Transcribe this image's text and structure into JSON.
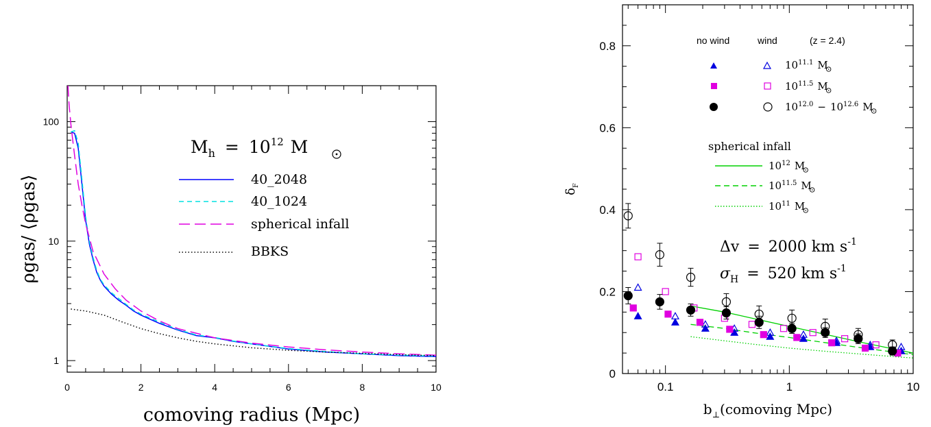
{
  "chart_data": [
    {
      "type": "line",
      "xlabel": "comoving radius (Mpc)",
      "ylabel": "ρgas/ ⟨ρgas⟩",
      "xlim": [
        0,
        10
      ],
      "ylim": [
        0.8,
        200
      ],
      "yscale": "log",
      "xticks": [
        0,
        2,
        4,
        6,
        8,
        10
      ],
      "yticks": [
        1,
        10,
        100
      ],
      "annotation": "Mh = 10^12 M⊙",
      "annotation_parts": {
        "m": "M",
        "sub": "h",
        "eq": "=",
        "base": "10",
        "exp": "12",
        "unit": "M"
      },
      "legend_position": "center-right",
      "series": [
        {
          "name": "40_2048",
          "color": "#0000ff",
          "style": "solid",
          "x": [
            0.1,
            0.2,
            0.3,
            0.4,
            0.5,
            0.6,
            0.7,
            0.8,
            0.9,
            1.0,
            1.2,
            1.4,
            1.6,
            1.8,
            2.0,
            2.5,
            3.0,
            3.5,
            4.0,
            4.5,
            5.0,
            6.0,
            7.0,
            8.0,
            9.0,
            10.0
          ],
          "y": [
            82,
            80,
            60,
            30,
            15,
            9.5,
            7,
            5.5,
            4.7,
            4.2,
            3.6,
            3.2,
            2.9,
            2.6,
            2.4,
            2.05,
            1.8,
            1.62,
            1.55,
            1.45,
            1.38,
            1.25,
            1.18,
            1.14,
            1.1,
            1.08
          ]
        },
        {
          "name": "40_1024",
          "color": "#00e0e0",
          "style": "dashed",
          "x": [
            0.1,
            0.2,
            0.3,
            0.4,
            0.5,
            0.6,
            0.7,
            0.8,
            0.9,
            1.0,
            1.2,
            1.4,
            1.6,
            1.8,
            2.0,
            2.5,
            3.0,
            3.5,
            4.0,
            4.5,
            5.0,
            6.0,
            7.0,
            8.0,
            9.0,
            10.0
          ],
          "y": [
            82,
            84,
            66,
            33,
            16,
            10,
            7.3,
            5.7,
            4.8,
            4.3,
            3.7,
            3.3,
            2.95,
            2.65,
            2.45,
            2.1,
            1.82,
            1.64,
            1.56,
            1.46,
            1.38,
            1.26,
            1.19,
            1.14,
            1.11,
            1.09
          ]
        },
        {
          "name": "spherical infall",
          "color": "#e000e0",
          "style": "longdash",
          "x": [
            0.02,
            0.05,
            0.1,
            0.15,
            0.2,
            0.3,
            0.4,
            0.5,
            0.7,
            1.0,
            1.3,
            1.6,
            2.0,
            2.5,
            3.0,
            4.0,
            5.0,
            6.0,
            7.0,
            8.0,
            9.0,
            10.0
          ],
          "y": [
            200,
            140,
            95,
            70,
            52,
            30,
            20,
            14,
            8.2,
            5.3,
            4.0,
            3.2,
            2.6,
            2.15,
            1.85,
            1.55,
            1.4,
            1.3,
            1.23,
            1.18,
            1.14,
            1.11
          ]
        },
        {
          "name": "BBKS",
          "color": "#000000",
          "style": "dotted",
          "x": [
            0.1,
            0.5,
            1.0,
            1.5,
            2.0,
            2.5,
            3.0,
            3.5,
            4.0,
            5.0,
            6.0,
            7.0,
            8.0,
            9.0,
            10.0
          ],
          "y": [
            2.7,
            2.6,
            2.4,
            2.1,
            1.85,
            1.68,
            1.55,
            1.45,
            1.38,
            1.28,
            1.22,
            1.18,
            1.15,
            1.12,
            1.1
          ]
        }
      ]
    },
    {
      "type": "scatter",
      "xlabel": "b⊥(comoving Mpc)",
      "xlabel_parts": {
        "b": "b",
        "sub": "⊥",
        "rest": "(comoving Mpc)"
      },
      "ylabel": "δF",
      "ylabel_parts": {
        "sym": "δ",
        "sub": "F"
      },
      "xlim": [
        0.045,
        10
      ],
      "xscale": "log",
      "ylim": [
        0,
        0.9
      ],
      "xticks": [
        0.1,
        1,
        10
      ],
      "xtick_labels": [
        "0.1",
        "1",
        "10"
      ],
      "yticks": [
        0,
        0.2,
        0.4,
        0.6,
        0.8
      ],
      "ytick_labels": [
        "0",
        "0.2",
        "0.4",
        "0.6",
        "0.8"
      ],
      "legend_header": {
        "no_wind": "no wind",
        "wind": "wind",
        "redshift": "(z = 2.4)"
      },
      "legend_entries": [
        {
          "label": "10^11.1 M⊙",
          "base": "10",
          "exp": "11.1",
          "unit": "M",
          "color": "#0000e0",
          "filled": "triangle",
          "open": "triangle"
        },
        {
          "label": "10^11.5 M⊙",
          "base": "10",
          "exp": "11.5",
          "unit": "M",
          "color": "#e000e0",
          "filled": "square",
          "open": "square"
        },
        {
          "label": "10^12.0 − 10^12.6 M⊙",
          "base": "10",
          "exp": "12.0",
          "dash": "−",
          "base2": "10",
          "exp2": "12.6",
          "unit": "M",
          "color": "#000000",
          "filled": "circle",
          "open": "circle"
        }
      ],
      "infall_title": "spherical infall",
      "infall_lines": [
        {
          "label": "10^12 M⊙",
          "base": "10",
          "exp": "12",
          "unit": "M",
          "style": "solid",
          "color": "#00d000",
          "x": [
            0.16,
            0.3,
            0.5,
            1.0,
            2.0,
            4.0,
            8.0,
            10.0
          ],
          "y": [
            0.165,
            0.15,
            0.135,
            0.115,
            0.095,
            0.075,
            0.056,
            0.05
          ]
        },
        {
          "label": "10^11.5 M⊙",
          "base": "10",
          "exp": "11.5",
          "unit": "M",
          "style": "dashed",
          "color": "#00d000",
          "x": [
            0.16,
            0.3,
            0.5,
            1.0,
            2.0,
            4.0,
            8.0,
            10.0
          ],
          "y": [
            0.12,
            0.11,
            0.1,
            0.088,
            0.075,
            0.062,
            0.05,
            0.046
          ]
        },
        {
          "label": "10^11 M⊙",
          "base": "10",
          "exp": "11",
          "unit": "M",
          "style": "dotted",
          "color": "#00d000",
          "x": [
            0.16,
            0.3,
            0.5,
            1.0,
            2.0,
            4.0,
            8.0,
            10.0
          ],
          "y": [
            0.09,
            0.08,
            0.072,
            0.062,
            0.054,
            0.047,
            0.04,
            0.038
          ]
        }
      ],
      "annotations": [
        {
          "text": "Δv = 2000 km s^-1",
          "sym": "Δv",
          "eq": "=",
          "val": "2000 km s",
          "exp": "-1"
        },
        {
          "text": "σH = 520 km s^-1",
          "sym": "σ",
          "sub": "H",
          "eq": "=",
          "val": "520 km s",
          "exp": "-1"
        }
      ],
      "points": {
        "no_wind_triangle": {
          "x": [
            0.06,
            0.12,
            0.21,
            0.36,
            0.7,
            1.3,
            2.4,
            4.5,
            8.0
          ],
          "y": [
            0.14,
            0.125,
            0.11,
            0.1,
            0.09,
            0.085,
            0.075,
            0.065,
            0.055
          ]
        },
        "wind_triangle": {
          "x": [
            0.06,
            0.12,
            0.21,
            0.36,
            0.7,
            1.3,
            2.4,
            4.5,
            8.0
          ],
          "y": [
            0.21,
            0.14,
            0.12,
            0.11,
            0.1,
            0.095,
            0.08,
            0.07,
            0.065
          ]
        },
        "no_wind_square": {
          "x": [
            0.055,
            0.105,
            0.19,
            0.33,
            0.62,
            1.15,
            2.2,
            4.1,
            7.5
          ],
          "y": [
            0.16,
            0.145,
            0.125,
            0.108,
            0.095,
            0.088,
            0.075,
            0.062,
            0.05
          ]
        },
        "wind_square": {
          "x": [
            0.06,
            0.1,
            0.17,
            0.3,
            0.5,
            0.9,
            1.55,
            2.8,
            5.0
          ],
          "y": [
            0.285,
            0.2,
            0.16,
            0.135,
            0.12,
            0.11,
            0.1,
            0.085,
            0.07
          ]
        },
        "no_wind_circle": {
          "x": [
            0.05,
            0.09,
            0.16,
            0.31,
            0.57,
            1.05,
            1.95,
            3.6,
            6.8
          ],
          "y": [
            0.19,
            0.175,
            0.155,
            0.148,
            0.125,
            0.11,
            0.1,
            0.085,
            0.055
          ]
        },
        "no_wind_circle_err": [
          0.02,
          0.018,
          0.015,
          0.015,
          0.015,
          0.012,
          0.012,
          0.012,
          0.01
        ],
        "wind_circle": {
          "x": [
            0.05,
            0.09,
            0.16,
            0.31,
            0.57,
            1.05,
            1.95,
            3.6,
            6.8
          ],
          "y": [
            0.385,
            0.29,
            0.235,
            0.175,
            0.145,
            0.135,
            0.115,
            0.095,
            0.07
          ]
        },
        "wind_circle_err": [
          0.03,
          0.028,
          0.022,
          0.02,
          0.02,
          0.02,
          0.018,
          0.015,
          0.012
        ]
      }
    }
  ]
}
